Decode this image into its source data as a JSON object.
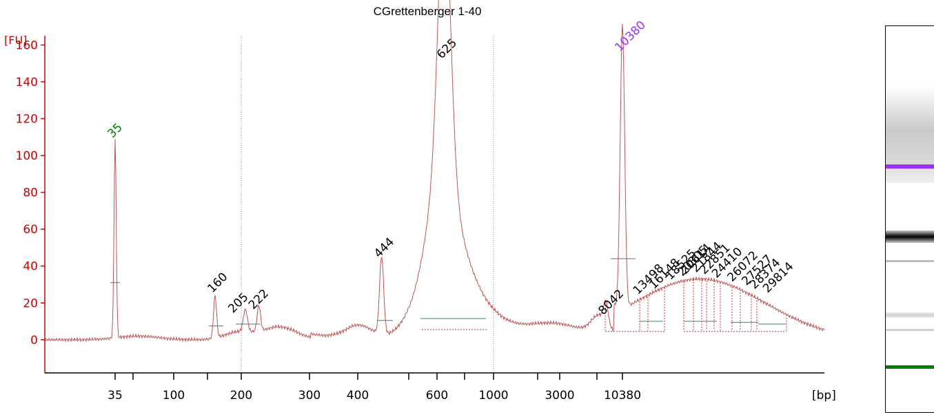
{
  "chart_data": {
    "type": "line",
    "title": "CGrettenberger 1-40",
    "ylabel": "[FU]",
    "xlabel": "[bp]",
    "ylim": [
      -18,
      165
    ],
    "y_ticks": [
      0,
      20,
      40,
      60,
      80,
      100,
      120,
      140,
      160
    ],
    "x_tick_labels": [
      "35",
      "100",
      "200",
      "300",
      "400",
      "600",
      "1000",
      "3000",
      "10380"
    ],
    "colors": {
      "trace": "#c0504d",
      "axis": "#d40000",
      "upper_marker": "#9b30ff",
      "lower_marker": "#008000",
      "peak_label": "#000000"
    },
    "peaks": [
      {
        "label": "35",
        "size_bp": 35,
        "height": 107,
        "color": "lower_marker"
      },
      {
        "label": "160",
        "size_bp": 160,
        "height": 23
      },
      {
        "label": "205",
        "size_bp": 205,
        "height": 12
      },
      {
        "label": "222",
        "size_bp": 222,
        "height": 14
      },
      {
        "label": "444",
        "size_bp": 444,
        "height": 42
      },
      {
        "label": "625",
        "size_bp": 625,
        "height": 150
      },
      {
        "label": "8042",
        "size_bp": 8042,
        "height": 11
      },
      {
        "label": "10380",
        "size_bp": 10380,
        "height": 154,
        "color": "upper_marker"
      },
      {
        "label": "13498",
        "size_bp": 13498,
        "height": 22
      },
      {
        "label": "16148",
        "size_bp": 16148,
        "height": 25
      },
      {
        "label": "18525",
        "size_bp": 18525,
        "height": 30
      },
      {
        "label": "20305",
        "size_bp": 20305,
        "height": 32
      },
      {
        "label": "20614",
        "size_bp": 20614,
        "height": 33
      },
      {
        "label": "21844",
        "size_bp": 21844,
        "height": 34
      },
      {
        "label": "22851",
        "size_bp": 22851,
        "height": 33
      },
      {
        "label": "24410",
        "size_bp": 24410,
        "height": 31
      },
      {
        "label": "26072",
        "size_bp": 26072,
        "height": 29
      },
      {
        "label": "27527",
        "size_bp": 27527,
        "height": 27
      },
      {
        "label": "28374",
        "size_bp": 28374,
        "height": 25
      },
      {
        "label": "29814",
        "size_bp": 29814,
        "height": 23
      }
    ],
    "gel": {
      "upper_marker_color": "#9b30ff",
      "lower_marker_color": "#008000"
    }
  }
}
